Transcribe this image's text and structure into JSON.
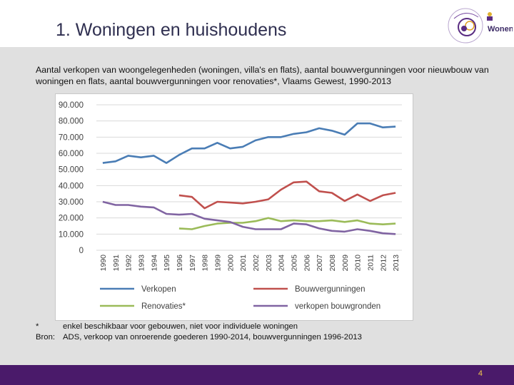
{
  "header": {
    "title": "1. Woningen en huishoudens",
    "logo_text": "Wonen"
  },
  "subtitle": "Aantal verkopen van woongelegenheden (woningen, villa's en flats), aantal bouwvergunningen voor nieuwbouw van woningen en flats, aantal bouwvergunningen voor renovaties*, Vlaams Gewest, 1990-2013",
  "notes": {
    "star_marker": "*",
    "star_text": "enkel beschikbaar voor gebouwen, niet voor individuele woningen",
    "source_label": "Bron:",
    "source_text": "ADS, verkoop van onroerende goederen 1990-2014, bouwvergunningen 1996-2013"
  },
  "footer": {
    "page_number": "4",
    "color": "#4a1a6a"
  },
  "chart_data": {
    "type": "line",
    "title": "",
    "xlabel": "",
    "ylabel": "",
    "ylim": [
      0,
      90000
    ],
    "yticks": [
      "0",
      "10.000",
      "20.000",
      "30.000",
      "40.000",
      "50.000",
      "60.000",
      "70.000",
      "80.000",
      "90.000"
    ],
    "grid": true,
    "legend_position": "bottom",
    "x": [
      "1990",
      "1991",
      "1992",
      "1993",
      "1994",
      "1995",
      "1996",
      "1997",
      "1998",
      "1999",
      "2000",
      "2001",
      "2002",
      "2003",
      "2004",
      "2005",
      "2006",
      "2007",
      "2008",
      "2009",
      "2010",
      "2011",
      "2012",
      "2013"
    ],
    "series": [
      {
        "name": "Verkopen",
        "color": "#4a7db5",
        "values": [
          54000,
          55000,
          58500,
          57500,
          58500,
          54000,
          59000,
          63000,
          63000,
          66500,
          63000,
          64000,
          68000,
          70000,
          70000,
          72000,
          73000,
          75500,
          74000,
          71500,
          78500,
          78500,
          76000,
          76500
        ]
      },
      {
        "name": "Bouwvergunningen",
        "color": "#c0504d",
        "values": [
          null,
          null,
          null,
          null,
          null,
          null,
          34000,
          33000,
          26000,
          30000,
          29500,
          29000,
          30000,
          31500,
          37500,
          42000,
          42500,
          36500,
          35500,
          30500,
          34500,
          30500,
          34000,
          35500
        ]
      },
      {
        "name": "Renovaties*",
        "color": "#9bbb59",
        "values": [
          null,
          null,
          null,
          null,
          null,
          null,
          13500,
          13000,
          15000,
          16500,
          17000,
          17000,
          18000,
          20000,
          18000,
          18500,
          18000,
          18000,
          18500,
          17500,
          18500,
          16500,
          16000,
          16500
        ]
      },
      {
        "name": "verkopen bouwgronden",
        "color": "#8064a2",
        "values": [
          30000,
          28000,
          28000,
          27000,
          26500,
          22500,
          22000,
          22500,
          19500,
          18500,
          17500,
          14500,
          13000,
          13000,
          13000,
          16500,
          16000,
          13500,
          12000,
          11500,
          13000,
          12000,
          10500,
          10000
        ]
      }
    ]
  }
}
